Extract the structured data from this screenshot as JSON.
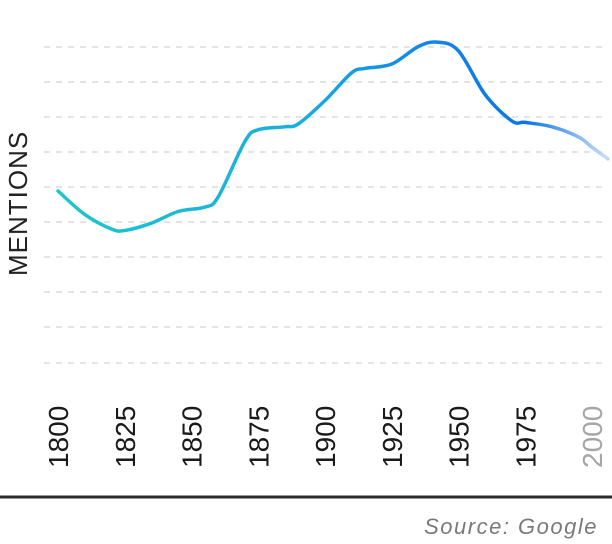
{
  "chart_data": {
    "type": "line",
    "title": "",
    "xlabel": "",
    "ylabel": "MENTIONS",
    "x_ticks": [
      "1800",
      "1825",
      "1850",
      "1875",
      "1900",
      "1925",
      "1950",
      "1975",
      "2000"
    ],
    "xlim": [
      1800,
      2010
    ],
    "ylim": [
      0,
      10
    ],
    "grid": true,
    "legend": "none",
    "series": [
      {
        "x": [
          1800,
          1810,
          1820,
          1825,
          1835,
          1845,
          1855,
          1860,
          1870,
          1875,
          1885,
          1890,
          1900,
          1910,
          1915,
          1925,
          1935,
          1942,
          1950,
          1960,
          1970,
          1975,
          1985,
          1995,
          2000,
          2006
        ],
        "y": [
          3.8,
          3.0,
          2.5,
          2.45,
          2.7,
          3.1,
          3.25,
          3.6,
          5.5,
          5.9,
          6.0,
          6.1,
          6.9,
          7.85,
          8.0,
          8.15,
          8.75,
          8.9,
          8.6,
          7.1,
          6.2,
          6.15,
          6.0,
          5.65,
          5.3,
          4.9
        ]
      }
    ],
    "colors": {
      "start": "#1ec8c8",
      "mid": "#1597e5",
      "end": "#0a74e8",
      "fade": "#a9c8f5"
    }
  },
  "source": "Source: Google"
}
